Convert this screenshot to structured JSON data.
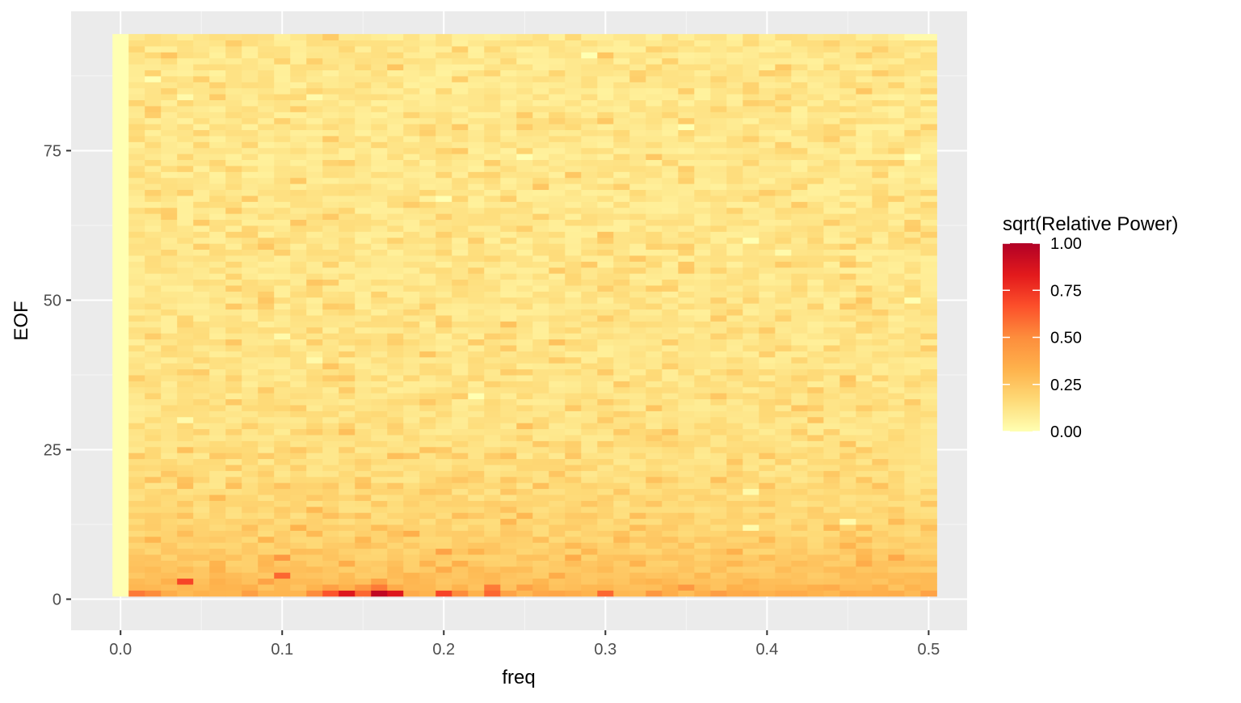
{
  "chart_data": {
    "type": "heatmap",
    "xlabel": "freq",
    "ylabel": "EOF",
    "xlim": [
      -0.0306,
      0.5238
    ],
    "ylim": [
      -5.2,
      98.3
    ],
    "x_ticks": [
      0.0,
      0.1,
      0.2,
      0.3,
      0.4,
      0.5
    ],
    "x_tick_labels": [
      "0.0",
      "0.1",
      "0.2",
      "0.3",
      "0.4",
      "0.5"
    ],
    "y_ticks": [
      0,
      25,
      50,
      75
    ],
    "y_tick_labels": [
      "0",
      "25",
      "50",
      "75"
    ],
    "grid": true,
    "freq_range": [
      0.0,
      0.5
    ],
    "freq_step": 0.01,
    "eof_range": [
      1,
      94
    ],
    "eof_step": 1,
    "notes": "values approximate; full grid of roughly 50 x 94 cells, background level ~0.1 with noise",
    "value_scale": {
      "title": "sqrt(Relative Power)",
      "limits": [
        0.0,
        1.0
      ],
      "breaks": [
        0.0,
        0.25,
        0.5,
        0.75,
        1.0
      ],
      "break_labels": [
        "0.00",
        "0.25",
        "0.50",
        "0.75",
        "1.00"
      ],
      "colors": [
        "#FFFFB2",
        "#FED976",
        "#FEB24C",
        "#FD8D3C",
        "#FC4E2A",
        "#E31A1C",
        "#B10026"
      ]
    },
    "zero_frequency_column": {
      "freq": 0.0,
      "value": 0.0
    },
    "highlighted_cells": [
      {
        "freq": 0.14,
        "eof": 1,
        "value": 0.85
      },
      {
        "freq": 0.16,
        "eof": 1,
        "value": 0.95
      },
      {
        "freq": 0.17,
        "eof": 1,
        "value": 0.85
      },
      {
        "freq": 0.13,
        "eof": 1,
        "value": 0.65
      },
      {
        "freq": 0.2,
        "eof": 1,
        "value": 0.7
      },
      {
        "freq": 0.23,
        "eof": 1,
        "value": 0.6
      },
      {
        "freq": 0.23,
        "eof": 2,
        "value": 0.55
      },
      {
        "freq": 0.3,
        "eof": 1,
        "value": 0.6
      },
      {
        "freq": 0.16,
        "eof": 2,
        "value": 0.55
      },
      {
        "freq": 0.04,
        "eof": 3,
        "value": 0.7
      },
      {
        "freq": 0.1,
        "eof": 4,
        "value": 0.6
      },
      {
        "freq": 0.01,
        "eof": 1,
        "value": 0.55
      },
      {
        "freq": 0.12,
        "eof": 1,
        "value": 0.5
      },
      {
        "freq": 0.15,
        "eof": 1,
        "value": 0.6
      },
      {
        "freq": 0.15,
        "eof": 2,
        "value": 0.45
      },
      {
        "freq": 0.21,
        "eof": 1,
        "value": 0.5
      },
      {
        "freq": 0.02,
        "eof": 1,
        "value": 0.5
      },
      {
        "freq": 0.33,
        "eof": 1,
        "value": 0.45
      },
      {
        "freq": 0.35,
        "eof": 2,
        "value": 0.45
      },
      {
        "freq": 0.1,
        "eof": 7,
        "value": 0.45
      },
      {
        "freq": 0.2,
        "eof": 8,
        "value": 0.4
      }
    ],
    "low_cells": [
      {
        "freq": 0.02,
        "eof": 87,
        "value": 0.0
      },
      {
        "freq": 0.04,
        "eof": 84,
        "value": 0.02
      },
      {
        "freq": 0.12,
        "eof": 84,
        "value": 0.02
      },
      {
        "freq": 0.29,
        "eof": 91,
        "value": 0.0
      },
      {
        "freq": 0.35,
        "eof": 79,
        "value": 0.0
      },
      {
        "freq": 0.25,
        "eof": 74,
        "value": 0.0
      },
      {
        "freq": 0.2,
        "eof": 67,
        "value": 0.0
      },
      {
        "freq": 0.39,
        "eof": 60,
        "value": 0.0
      },
      {
        "freq": 0.41,
        "eof": 58,
        "value": 0.02
      },
      {
        "freq": 0.12,
        "eof": 40,
        "value": 0.02
      },
      {
        "freq": 0.22,
        "eof": 34,
        "value": 0.0
      },
      {
        "freq": 0.04,
        "eof": 30,
        "value": 0.02
      },
      {
        "freq": 0.39,
        "eof": 18,
        "value": 0.02
      },
      {
        "freq": 0.39,
        "eof": 12,
        "value": 0.02
      },
      {
        "freq": 0.45,
        "eof": 13,
        "value": 0.02
      },
      {
        "freq": 0.1,
        "eof": 44,
        "value": 0.02
      },
      {
        "freq": 0.0,
        "eof": 79,
        "value": 0.0
      },
      {
        "freq": 0.49,
        "eof": 50,
        "value": 0.0
      },
      {
        "freq": 0.49,
        "eof": 74,
        "value": 0.0
      }
    ]
  }
}
